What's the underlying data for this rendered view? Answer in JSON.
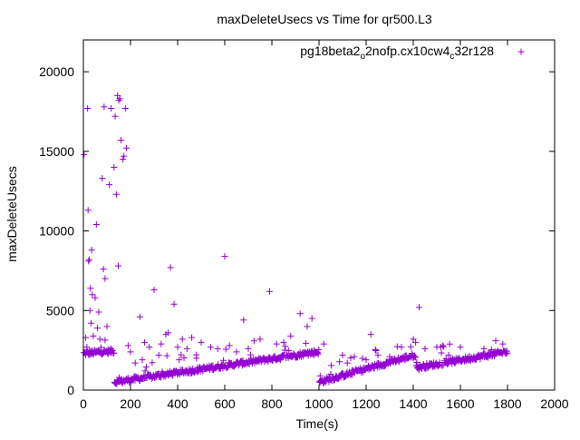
{
  "chart_data": {
    "type": "scatter",
    "title": "maxDeleteUsecs vs Time for qr500.L3",
    "xlabel": "Time(s)",
    "ylabel": "maxDeleteUsecs",
    "xlim": [
      0,
      2000
    ],
    "ylim": [
      0,
      22000
    ],
    "x_ticks": [
      0,
      200,
      400,
      600,
      800,
      1000,
      1200,
      1400,
      1600,
      1800,
      2000
    ],
    "y_ticks": [
      0,
      5000,
      10000,
      15000,
      20000
    ],
    "grid": false,
    "legend_position": "top-right",
    "marker": "+",
    "color": "#9400d3",
    "series": [
      {
        "name": "pg18beta2_o2nofp.cx10cw4_c32r128",
        "legend_parts": [
          {
            "text": "pg18beta2",
            "sub": false
          },
          {
            "text": "o",
            "sub": true
          },
          {
            "text": "2nofp.cx10cw4",
            "sub": false
          },
          {
            "text": "c",
            "sub": true
          },
          {
            "text": "32r128",
            "sub": false
          }
        ],
        "outliers": [
          [
            3,
            14800
          ],
          [
            10,
            3300
          ],
          [
            15,
            2700
          ],
          [
            18,
            17700
          ],
          [
            20,
            11300
          ],
          [
            22,
            8100
          ],
          [
            25,
            8200
          ],
          [
            28,
            5000
          ],
          [
            30,
            6400
          ],
          [
            33,
            4200
          ],
          [
            35,
            8800
          ],
          [
            38,
            6000
          ],
          [
            42,
            3400
          ],
          [
            50,
            5800
          ],
          [
            55,
            10400
          ],
          [
            60,
            3900
          ],
          [
            65,
            4900
          ],
          [
            70,
            3200
          ],
          [
            80,
            13300
          ],
          [
            85,
            7600
          ],
          [
            88,
            17800
          ],
          [
            92,
            7000
          ],
          [
            100,
            4000
          ],
          [
            110,
            12900
          ],
          [
            118,
            17700
          ],
          [
            130,
            14000
          ],
          [
            135,
            17200
          ],
          [
            140,
            12300
          ],
          [
            145,
            18500
          ],
          [
            148,
            7800
          ],
          [
            150,
            18200
          ],
          [
            155,
            18300
          ],
          [
            160,
            15700
          ],
          [
            168,
            14500
          ],
          [
            172,
            14700
          ],
          [
            178,
            17700
          ],
          [
            183,
            15200
          ],
          [
            190,
            2800
          ],
          [
            200,
            2400
          ],
          [
            220,
            1700
          ],
          [
            240,
            4600
          ],
          [
            250,
            1900
          ],
          [
            260,
            3000
          ],
          [
            280,
            2700
          ],
          [
            300,
            6300
          ],
          [
            320,
            2200
          ],
          [
            330,
            2900
          ],
          [
            350,
            3500
          ],
          [
            360,
            3600
          ],
          [
            370,
            7700
          ],
          [
            385,
            5400
          ],
          [
            400,
            2700
          ],
          [
            420,
            3200
          ],
          [
            440,
            2600
          ],
          [
            460,
            3300
          ],
          [
            480,
            2000
          ],
          [
            500,
            3000
          ],
          [
            540,
            2700
          ],
          [
            570,
            2600
          ],
          [
            600,
            8400
          ],
          [
            620,
            2800
          ],
          [
            650,
            2400
          ],
          [
            680,
            4400
          ],
          [
            700,
            2600
          ],
          [
            750,
            3200
          ],
          [
            790,
            6200
          ],
          [
            820,
            2900
          ],
          [
            850,
            3000
          ],
          [
            880,
            3400
          ],
          [
            920,
            4800
          ],
          [
            950,
            4000
          ],
          [
            970,
            4500
          ],
          [
            1005,
            900
          ],
          [
            1020,
            2900
          ],
          [
            1050,
            1000
          ],
          [
            1100,
            2200
          ],
          [
            1120,
            1700
          ],
          [
            1150,
            2100
          ],
          [
            1200,
            1900
          ],
          [
            1220,
            3500
          ],
          [
            1250,
            2200
          ],
          [
            1300,
            2100
          ],
          [
            1350,
            2700
          ],
          [
            1400,
            3200
          ],
          [
            1410,
            3000
          ],
          [
            1425,
            5200
          ],
          [
            1450,
            2600
          ],
          [
            1500,
            2700
          ],
          [
            1550,
            2200
          ],
          [
            1600,
            2700
          ],
          [
            1700,
            2600
          ],
          [
            1750,
            3100
          ],
          [
            1780,
            2900
          ]
        ]
      }
    ]
  }
}
